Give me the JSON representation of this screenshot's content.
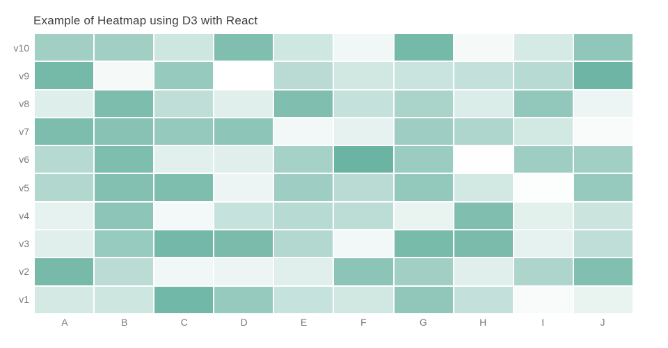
{
  "title": "Example of Heatmap using D3 with React",
  "colors": {
    "background": "#ffffff",
    "title_text": "#3d3d3d",
    "axis_text": "#7b7b7b",
    "cell_min": "#ffffff",
    "cell_max": "#69b3a2"
  },
  "chart_data": {
    "type": "heatmap",
    "title": "Example of Heatmap using D3 with React",
    "xlabel": "",
    "ylabel": "",
    "x_categories": [
      "A",
      "B",
      "C",
      "D",
      "E",
      "F",
      "G",
      "H",
      "I",
      "J"
    ],
    "y_categories": [
      "v10",
      "v9",
      "v8",
      "v7",
      "v6",
      "v5",
      "v4",
      "v3",
      "v2",
      "v1"
    ],
    "value_range": [
      0,
      100
    ],
    "color_scale": {
      "min_color": "#ffffff",
      "max_color": "#69b3a2"
    },
    "grid": false,
    "legend": false,
    "rows": [
      {
        "label": "v10",
        "values": [
          63,
          63,
          33,
          85,
          32,
          10,
          92,
          7,
          28,
          74
        ]
      },
      {
        "label": "v9",
        "values": [
          92,
          7,
          70,
          0,
          47,
          31,
          36,
          40,
          48,
          97
        ]
      },
      {
        "label": "v8",
        "values": [
          22,
          87,
          43,
          21,
          85,
          39,
          57,
          24,
          73,
          13
        ]
      },
      {
        "label": "v7",
        "values": [
          87,
          80,
          71,
          76,
          9,
          17,
          65,
          54,
          30,
          5
        ]
      },
      {
        "label": "v6",
        "values": [
          49,
          86,
          20,
          21,
          60,
          99,
          67,
          1,
          65,
          63
        ]
      },
      {
        "label": "v5",
        "values": [
          52,
          83,
          86,
          13,
          65,
          47,
          72,
          30,
          2,
          70
        ]
      },
      {
        "label": "v4",
        "values": [
          17,
          76,
          8,
          38,
          48,
          45,
          15,
          85,
          19,
          35
        ]
      },
      {
        "label": "v3",
        "values": [
          21,
          69,
          93,
          89,
          51,
          9,
          90,
          89,
          17,
          43
        ]
      },
      {
        "label": "v2",
        "values": [
          91,
          46,
          10,
          13,
          21,
          77,
          63,
          21,
          55,
          84
        ]
      },
      {
        "label": "v1",
        "values": [
          29,
          33,
          94,
          70,
          38,
          31,
          74,
          40,
          5,
          15
        ]
      }
    ]
  }
}
